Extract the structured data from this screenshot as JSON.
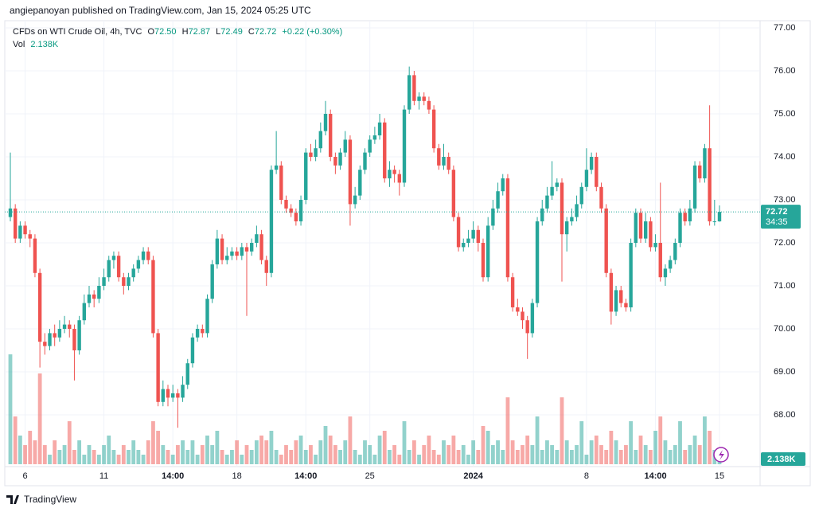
{
  "header": "angiepanoyan published on TradingView.com, Jan 15, 2024 05:25 UTC",
  "footer": "TradingView",
  "chart_data": {
    "type": "candlestick",
    "title": "CFDs on WTI Crude Oil, 4h, TVC",
    "legend_keys": [
      "O",
      "H",
      "L",
      "C"
    ],
    "last_labels": [
      "72.50",
      "72.87",
      "72.49",
      "72.72"
    ],
    "change": "+0.22 (+0.30%)",
    "volume_title": "Vol",
    "volume_label": "2.138K",
    "countdown": "34:35",
    "up_color": "#26a69a",
    "down_color": "#ef5350",
    "grid": true,
    "ylim": [
      67.3,
      77.3
    ],
    "yticks": [
      {
        "value": 77,
        "label": "77.00"
      },
      {
        "value": 76,
        "label": "76.00"
      },
      {
        "value": 75,
        "label": "75.00"
      },
      {
        "value": 74,
        "label": "74.00"
      },
      {
        "value": 73,
        "label": "73.00"
      },
      {
        "value": 72,
        "label": "72.00"
      },
      {
        "value": 71,
        "label": "71.00"
      },
      {
        "value": 70,
        "label": "70.00"
      },
      {
        "value": 69,
        "label": "69.00"
      },
      {
        "value": 68,
        "label": "68.00"
      }
    ],
    "volume_ylim": [
      0,
      24
    ],
    "xticks": [
      {
        "value": 3,
        "label": "6"
      },
      {
        "value": 19,
        "label": "11"
      },
      {
        "value": 33,
        "label": "14:00"
      },
      {
        "value": 46,
        "label": "18"
      },
      {
        "value": 60,
        "label": "14:00"
      },
      {
        "value": 73,
        "label": "25"
      },
      {
        "value": 94,
        "label": "2024"
      },
      {
        "value": 117,
        "label": "8"
      },
      {
        "value": 131,
        "label": "14:00"
      },
      {
        "value": 144,
        "label": "15"
      }
    ],
    "ohlc": [
      [
        72.6,
        74.1,
        72.5,
        72.8
      ],
      [
        72.8,
        72.9,
        72.0,
        72.1
      ],
      [
        72.1,
        72.5,
        72.0,
        72.4
      ],
      [
        72.4,
        72.5,
        72.1,
        72.2
      ],
      [
        72.2,
        72.3,
        71.9,
        72.1
      ],
      [
        72.1,
        72.2,
        71.2,
        71.3
      ],
      [
        71.3,
        71.4,
        69.1,
        69.7
      ],
      [
        69.7,
        69.9,
        69.4,
        69.6
      ],
      [
        69.6,
        70.0,
        69.5,
        69.9
      ],
      [
        69.9,
        70.1,
        69.6,
        69.8
      ],
      [
        69.8,
        70.2,
        69.7,
        70.0
      ],
      [
        70.0,
        70.3,
        69.9,
        70.1
      ],
      [
        70.1,
        70.2,
        69.8,
        70.0
      ],
      [
        70.0,
        70.1,
        68.8,
        69.5
      ],
      [
        69.5,
        70.3,
        69.4,
        70.2
      ],
      [
        70.2,
        70.8,
        70.1,
        70.6
      ],
      [
        70.6,
        71.0,
        70.5,
        70.8
      ],
      [
        70.8,
        70.9,
        70.5,
        70.7
      ],
      [
        70.7,
        71.2,
        70.6,
        71.0
      ],
      [
        71.0,
        71.4,
        70.9,
        71.2
      ],
      [
        71.2,
        71.7,
        71.1,
        71.6
      ],
      [
        71.6,
        71.8,
        71.4,
        71.7
      ],
      [
        71.7,
        71.8,
        71.1,
        71.2
      ],
      [
        71.2,
        71.3,
        70.8,
        71.0
      ],
      [
        71.0,
        71.3,
        70.9,
        71.2
      ],
      [
        71.2,
        71.5,
        71.1,
        71.4
      ],
      [
        71.4,
        71.7,
        71.3,
        71.6
      ],
      [
        71.6,
        71.9,
        71.5,
        71.8
      ],
      [
        71.8,
        71.9,
        71.5,
        71.6
      ],
      [
        71.6,
        71.7,
        69.8,
        69.9
      ],
      [
        69.9,
        70.0,
        68.2,
        68.3
      ],
      [
        68.3,
        68.8,
        68.2,
        68.6
      ],
      [
        68.6,
        68.7,
        68.2,
        68.4
      ],
      [
        68.4,
        68.7,
        68.3,
        68.5
      ],
      [
        68.5,
        68.6,
        67.7,
        68.4
      ],
      [
        68.4,
        68.9,
        68.3,
        68.7
      ],
      [
        68.7,
        69.3,
        68.6,
        69.2
      ],
      [
        69.2,
        69.9,
        69.1,
        69.8
      ],
      [
        69.8,
        70.1,
        69.7,
        70.0
      ],
      [
        70.0,
        70.1,
        69.8,
        69.9
      ],
      [
        69.9,
        70.8,
        69.8,
        70.7
      ],
      [
        70.7,
        71.6,
        70.6,
        71.5
      ],
      [
        71.5,
        72.3,
        71.4,
        72.1
      ],
      [
        72.1,
        72.2,
        71.5,
        71.6
      ],
      [
        71.6,
        71.9,
        71.5,
        71.7
      ],
      [
        71.7,
        71.9,
        71.6,
        71.8
      ],
      [
        71.8,
        71.9,
        71.6,
        71.7
      ],
      [
        71.7,
        72.0,
        71.6,
        71.9
      ],
      [
        71.9,
        72.0,
        70.3,
        71.8
      ],
      [
        71.8,
        72.1,
        71.7,
        72.0
      ],
      [
        72.0,
        72.4,
        71.9,
        72.2
      ],
      [
        72.2,
        72.3,
        71.5,
        71.6
      ],
      [
        71.6,
        71.7,
        71.0,
        71.3
      ],
      [
        71.3,
        73.8,
        71.2,
        73.7
      ],
      [
        73.7,
        74.6,
        73.6,
        73.8
      ],
      [
        73.8,
        73.9,
        72.9,
        73.0
      ],
      [
        73.0,
        73.1,
        72.7,
        72.8
      ],
      [
        72.8,
        72.9,
        72.6,
        72.7
      ],
      [
        72.7,
        72.8,
        72.4,
        72.5
      ],
      [
        72.5,
        73.1,
        72.4,
        73.0
      ],
      [
        73.0,
        74.2,
        72.9,
        74.1
      ],
      [
        74.1,
        74.3,
        73.9,
        74.0
      ],
      [
        74.0,
        74.4,
        73.9,
        74.2
      ],
      [
        74.2,
        74.8,
        74.1,
        74.6
      ],
      [
        74.6,
        75.3,
        74.5,
        75.0
      ],
      [
        75.0,
        75.1,
        73.9,
        74.0
      ],
      [
        74.0,
        74.1,
        73.6,
        73.8
      ],
      [
        73.8,
        74.2,
        73.7,
        74.1
      ],
      [
        74.1,
        74.6,
        74.0,
        74.4
      ],
      [
        74.4,
        74.5,
        72.4,
        72.9
      ],
      [
        72.9,
        73.3,
        72.8,
        73.1
      ],
      [
        73.1,
        73.8,
        73.0,
        73.7
      ],
      [
        73.7,
        74.2,
        73.6,
        74.1
      ],
      [
        74.1,
        74.5,
        74.0,
        74.4
      ],
      [
        74.4,
        74.7,
        74.3,
        74.5
      ],
      [
        74.5,
        75.0,
        74.4,
        74.8
      ],
      [
        74.8,
        74.9,
        73.4,
        73.5
      ],
      [
        73.5,
        73.9,
        73.3,
        73.7
      ],
      [
        73.7,
        73.8,
        73.4,
        73.6
      ],
      [
        73.6,
        73.7,
        73.1,
        73.4
      ],
      [
        73.4,
        75.2,
        73.3,
        75.1
      ],
      [
        75.1,
        76.1,
        75.0,
        75.9
      ],
      [
        75.9,
        76.0,
        75.2,
        75.3
      ],
      [
        75.3,
        75.5,
        75.1,
        75.4
      ],
      [
        75.4,
        75.5,
        75.2,
        75.3
      ],
      [
        75.3,
        75.4,
        75.0,
        75.1
      ],
      [
        75.1,
        75.2,
        74.1,
        74.2
      ],
      [
        74.2,
        74.3,
        73.7,
        73.8
      ],
      [
        73.8,
        74.3,
        73.7,
        74.0
      ],
      [
        74.0,
        74.1,
        73.6,
        73.7
      ],
      [
        73.7,
        73.8,
        72.5,
        72.6
      ],
      [
        72.6,
        72.7,
        71.8,
        71.9
      ],
      [
        71.9,
        72.1,
        71.8,
        72.0
      ],
      [
        72.0,
        72.3,
        71.9,
        72.1
      ],
      [
        72.1,
        72.5,
        72.0,
        72.3
      ],
      [
        72.3,
        72.4,
        71.8,
        72.0
      ],
      [
        72.0,
        72.1,
        71.1,
        71.2
      ],
      [
        71.2,
        72.6,
        71.1,
        72.4
      ],
      [
        72.4,
        73.0,
        72.3,
        72.8
      ],
      [
        72.8,
        73.4,
        72.7,
        73.2
      ],
      [
        73.2,
        73.6,
        73.1,
        73.5
      ],
      [
        73.5,
        73.6,
        71.1,
        71.2
      ],
      [
        71.2,
        71.3,
        70.4,
        70.5
      ],
      [
        70.5,
        70.7,
        70.3,
        70.4
      ],
      [
        70.4,
        70.5,
        70.0,
        70.2
      ],
      [
        70.2,
        70.3,
        69.3,
        69.9
      ],
      [
        69.9,
        70.7,
        69.8,
        70.6
      ],
      [
        70.6,
        72.6,
        70.5,
        72.5
      ],
      [
        72.5,
        73.0,
        72.4,
        72.8
      ],
      [
        72.8,
        73.3,
        72.7,
        73.1
      ],
      [
        73.1,
        73.9,
        73.0,
        73.3
      ],
      [
        73.3,
        73.5,
        73.2,
        73.4
      ],
      [
        73.4,
        73.5,
        71.1,
        72.2
      ],
      [
        72.2,
        72.6,
        71.8,
        72.5
      ],
      [
        72.5,
        72.8,
        72.4,
        72.6
      ],
      [
        72.6,
        73.1,
        72.5,
        72.9
      ],
      [
        72.9,
        73.4,
        72.8,
        73.3
      ],
      [
        73.3,
        74.2,
        73.2,
        73.7
      ],
      [
        73.7,
        74.1,
        73.6,
        74.0
      ],
      [
        74.0,
        74.1,
        73.2,
        73.3
      ],
      [
        73.3,
        73.4,
        72.7,
        72.8
      ],
      [
        72.8,
        72.9,
        71.2,
        71.3
      ],
      [
        71.3,
        71.4,
        70.1,
        70.4
      ],
      [
        70.4,
        71.0,
        70.3,
        70.9
      ],
      [
        70.9,
        71.0,
        70.5,
        70.6
      ],
      [
        70.6,
        70.7,
        70.4,
        70.5
      ],
      [
        70.5,
        72.1,
        70.4,
        72.0
      ],
      [
        72.0,
        72.8,
        71.9,
        72.7
      ],
      [
        72.7,
        72.8,
        72.0,
        72.1
      ],
      [
        72.1,
        72.7,
        72.0,
        72.5
      ],
      [
        72.5,
        72.6,
        71.8,
        71.9
      ],
      [
        71.9,
        72.2,
        71.8,
        72.0
      ],
      [
        72.0,
        73.4,
        71.1,
        71.2
      ],
      [
        71.2,
        71.5,
        71.0,
        71.4
      ],
      [
        71.4,
        71.7,
        71.3,
        71.6
      ],
      [
        71.6,
        72.1,
        71.5,
        72.0
      ],
      [
        72.0,
        72.8,
        71.9,
        72.7
      ],
      [
        72.7,
        72.8,
        72.4,
        72.5
      ],
      [
        72.5,
        73.0,
        72.4,
        72.8
      ],
      [
        72.8,
        73.9,
        72.7,
        73.8
      ],
      [
        73.8,
        73.9,
        73.4,
        73.5
      ],
      [
        73.5,
        74.3,
        73.4,
        74.2
      ],
      [
        74.2,
        75.2,
        72.4,
        72.5
      ],
      [
        72.5,
        73.0,
        72.4,
        72.5
      ],
      [
        72.5,
        72.87,
        72.49,
        72.72
      ]
    ],
    "volume": [
      23,
      10,
      6,
      4,
      7,
      5,
      19,
      4,
      2,
      5,
      3,
      4,
      9,
      3,
      5,
      2,
      4,
      3,
      2,
      4,
      6,
      3,
      2,
      4,
      3,
      5,
      3,
      2,
      5,
      9,
      7,
      4,
      3,
      2,
      4,
      5,
      3,
      5,
      2,
      4,
      6,
      4,
      7,
      3,
      2,
      3,
      5,
      2,
      4,
      3,
      5,
      6,
      5,
      7,
      3,
      2,
      4,
      3,
      5,
      6,
      3,
      4,
      2,
      5,
      8,
      6,
      4,
      3,
      5,
      10,
      3,
      2,
      5,
      4,
      2,
      6,
      7,
      3,
      4,
      2,
      9,
      3,
      5,
      2,
      4,
      6,
      3,
      2,
      5,
      4,
      6,
      3,
      4,
      2,
      5,
      3,
      8,
      7,
      4,
      5,
      3,
      14,
      5,
      3,
      4,
      6,
      4,
      10,
      3,
      5,
      4,
      3,
      14,
      5,
      3,
      4,
      9,
      2,
      5,
      6,
      4,
      3,
      7,
      5,
      3,
      4,
      9,
      3,
      6,
      4,
      3,
      7,
      10,
      5,
      3,
      4,
      9,
      3,
      4,
      6,
      4,
      10,
      7,
      3,
      2.138
    ]
  }
}
